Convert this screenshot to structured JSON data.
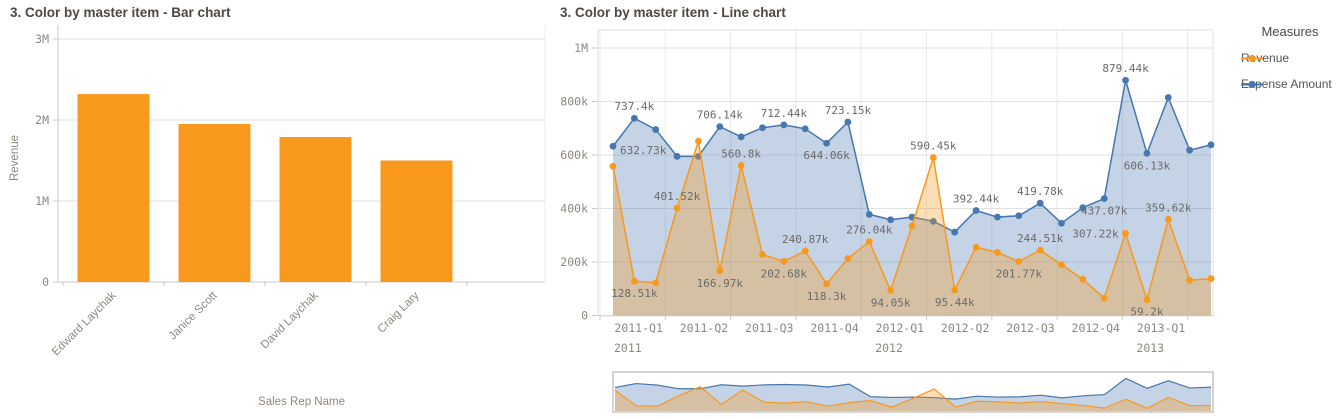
{
  "accent_colors": {
    "orange": "#f8981d",
    "blue": "#4677ae"
  },
  "chart_data": [
    {
      "type": "bar",
      "title": "3. Color by master item - Bar chart",
      "categories": [
        "Edward Laychak",
        "Janice Scott",
        "David Laychak",
        "Craig Lary"
      ],
      "values": [
        2320000,
        1950000,
        1790000,
        1500000
      ],
      "xlabel": "Sales Rep Name",
      "ylabel": "Revenue",
      "ylim": [
        0,
        3000000
      ],
      "ytick_labels": [
        "0",
        "1M",
        "2M",
        "3M"
      ],
      "bar_color": "#f8981d",
      "grid": true,
      "legend_position": "none"
    },
    {
      "type": "line",
      "title": "3. Color by master item - Line chart",
      "quarter_labels": [
        "2011-Q1",
        "2011-Q2",
        "2011-Q3",
        "2011-Q4",
        "2012-Q1",
        "2012-Q2",
        "2012-Q3",
        "2012-Q4",
        "2013-Q1"
      ],
      "year_labels": [
        {
          "text": "2011",
          "quarter": 0
        },
        {
          "text": "2012",
          "quarter": 4
        },
        {
          "text": "2013",
          "quarter": 8
        }
      ],
      "points_per_quarter": 3,
      "n_points": 29,
      "ylim": [
        0,
        1000000
      ],
      "ytick_labels": [
        "0",
        "200k",
        "400k",
        "600k",
        "800k",
        "1M"
      ],
      "grid": true,
      "legend": {
        "title": "Measures",
        "position": "right",
        "items": [
          "Revenue",
          "Expense Amount"
        ]
      },
      "series": [
        {
          "name": "Expense Amount",
          "color": "#4677ae",
          "values_thousands": [
            632.73,
            737.4,
            695,
            595,
            595,
            706.14,
            668,
            702,
            712.44,
            698,
            644.06,
            723.15,
            378,
            358,
            368,
            352,
            312,
            392.44,
            368,
            373,
            419.78,
            345,
            403,
            437.07,
            879.44,
            606.13,
            815,
            618,
            638
          ],
          "point_labels": [
            {
              "i": 0,
              "text": "632.73k",
              "pos": "right"
            },
            {
              "i": 1,
              "text": "737.4k",
              "pos": "above"
            },
            {
              "i": 5,
              "text": "706.14k",
              "pos": "above"
            },
            {
              "i": 8,
              "text": "712.44k",
              "pos": "above"
            },
            {
              "i": 10,
              "text": "644.06k",
              "pos": "below"
            },
            {
              "i": 11,
              "text": "723.15k",
              "pos": "above"
            },
            {
              "i": 17,
              "text": "392.44k",
              "pos": "above"
            },
            {
              "i": 20,
              "text": "419.78k",
              "pos": "above"
            },
            {
              "i": 23,
              "text": "437.07k",
              "pos": "below"
            },
            {
              "i": 24,
              "text": "879.44k",
              "pos": "above"
            },
            {
              "i": 25,
              "text": "606.13k",
              "pos": "below"
            }
          ]
        },
        {
          "name": "Revenue",
          "color": "#f8981d",
          "values_thousands": [
            558,
            128.51,
            122,
            401.52,
            652,
            166.97,
            560.8,
            228,
            202.68,
            240.87,
            118.3,
            213,
            276.04,
            94.05,
            335,
            590.45,
            95.44,
            255,
            236,
            201.77,
            244.51,
            190,
            135,
            65,
            307.22,
            59.2,
            359.62,
            132,
            138
          ],
          "point_labels": [
            {
              "i": 1,
              "text": "128.51k",
              "pos": "below"
            },
            {
              "i": 3,
              "text": "401.52k",
              "pos": "above"
            },
            {
              "i": 5,
              "text": "166.97k",
              "pos": "below"
            },
            {
              "i": 6,
              "text": "560.8k",
              "pos": "above"
            },
            {
              "i": 8,
              "text": "202.68k",
              "pos": "below"
            },
            {
              "i": 9,
              "text": "240.87k",
              "pos": "above"
            },
            {
              "i": 10,
              "text": "118.3k",
              "pos": "below"
            },
            {
              "i": 12,
              "text": "276.04k",
              "pos": "above"
            },
            {
              "i": 13,
              "text": "94.05k",
              "pos": "below"
            },
            {
              "i": 15,
              "text": "590.45k",
              "pos": "above"
            },
            {
              "i": 16,
              "text": "95.44k",
              "pos": "below"
            },
            {
              "i": 19,
              "text": "201.77k",
              "pos": "below"
            },
            {
              "i": 20,
              "text": "244.51k",
              "pos": "above"
            },
            {
              "i": 24,
              "text": "307.22k",
              "pos": "left"
            },
            {
              "i": 25,
              "text": "59.2k",
              "pos": "below"
            },
            {
              "i": 26,
              "text": "359.62k",
              "pos": "above"
            }
          ]
        }
      ],
      "navigator": {
        "shown": true
      }
    }
  ]
}
